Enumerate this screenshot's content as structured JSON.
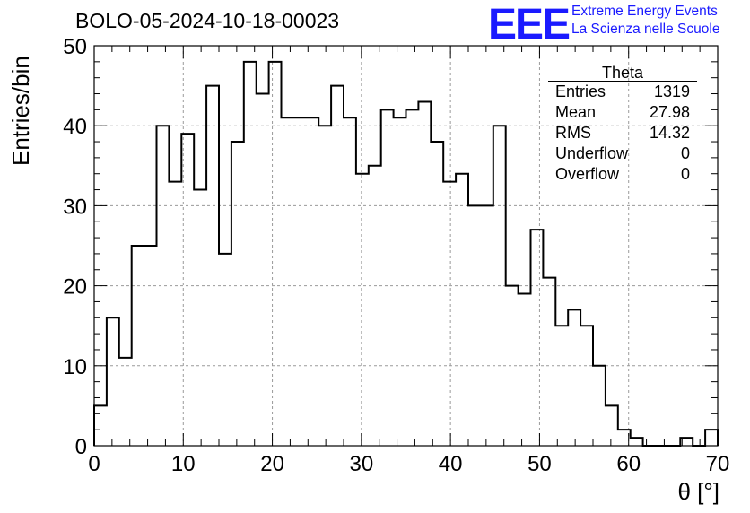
{
  "title": "BOLO-05-2024-10-18-00023",
  "logo": {
    "mark": "EEE",
    "line1": "Extreme Energy Events",
    "line2": "La Scienza nelle Scuole",
    "color": "#1a1aff"
  },
  "stats_box": {
    "name": "Theta",
    "rows": [
      {
        "label": "Entries",
        "value": "1319"
      },
      {
        "label": "Mean",
        "value": "27.98"
      },
      {
        "label": "RMS",
        "value": "14.32"
      },
      {
        "label": "Underflow",
        "value": "0"
      },
      {
        "label": "Overflow",
        "value": "0"
      }
    ]
  },
  "chart_data": {
    "type": "bar",
    "title": "BOLO-05-2024-10-18-00023",
    "xlabel": "θ [°]",
    "ylabel": "Entries/bin",
    "xlim": [
      0,
      70
    ],
    "ylim": [
      0,
      50
    ],
    "bin_width": 1.4,
    "xticks": [
      "0",
      "10",
      "20",
      "30",
      "40",
      "50",
      "60",
      "70"
    ],
    "yticks": [
      "0",
      "10",
      "20",
      "30",
      "40",
      "50"
    ],
    "grid": true,
    "values": [
      5,
      16,
      11,
      25,
      25,
      40,
      33,
      39,
      32,
      45,
      24,
      38,
      48,
      44,
      48,
      41,
      41,
      41,
      40,
      45,
      41,
      34,
      35,
      42,
      41,
      42,
      43,
      38,
      33,
      34,
      30,
      30,
      40,
      20,
      19,
      27,
      21,
      15,
      17,
      15,
      10,
      5,
      2,
      1,
      0,
      0,
      0,
      1,
      0,
      2
    ]
  }
}
